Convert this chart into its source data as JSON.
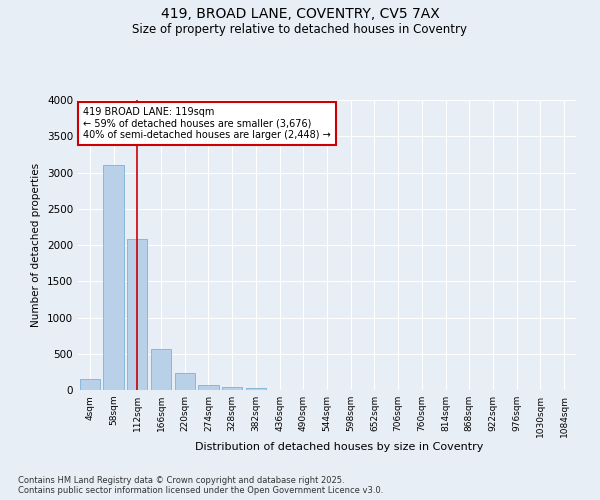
{
  "title1": "419, BROAD LANE, COVENTRY, CV5 7AX",
  "title2": "Size of property relative to detached houses in Coventry",
  "xlabel": "Distribution of detached houses by size in Coventry",
  "ylabel": "Number of detached properties",
  "annotation_line1": "419 BROAD LANE: 119sqm",
  "annotation_line2": "← 59% of detached houses are smaller (3,676)",
  "annotation_line3": "40% of semi-detached houses are larger (2,448) →",
  "footnote1": "Contains HM Land Registry data © Crown copyright and database right 2025.",
  "footnote2": "Contains public sector information licensed under the Open Government Licence v3.0.",
  "bar_color": "#b8d0e8",
  "bar_edge_color": "#6aaad4",
  "background_color": "#e8eef5",
  "grid_color": "#ffffff",
  "vline_color": "#cc0000",
  "vline_x": 2,
  "categories": [
    "4sqm",
    "58sqm",
    "112sqm",
    "166sqm",
    "220sqm",
    "274sqm",
    "328sqm",
    "382sqm",
    "436sqm",
    "490sqm",
    "544sqm",
    "598sqm",
    "652sqm",
    "706sqm",
    "760sqm",
    "814sqm",
    "868sqm",
    "922sqm",
    "976sqm",
    "1030sqm",
    "1084sqm"
  ],
  "values": [
    150,
    3100,
    2080,
    570,
    240,
    70,
    40,
    30,
    0,
    0,
    0,
    0,
    0,
    0,
    0,
    0,
    0,
    0,
    0,
    0,
    0
  ],
  "ylim": [
    0,
    4000
  ],
  "yticks": [
    0,
    500,
    1000,
    1500,
    2000,
    2500,
    3000,
    3500,
    4000
  ]
}
